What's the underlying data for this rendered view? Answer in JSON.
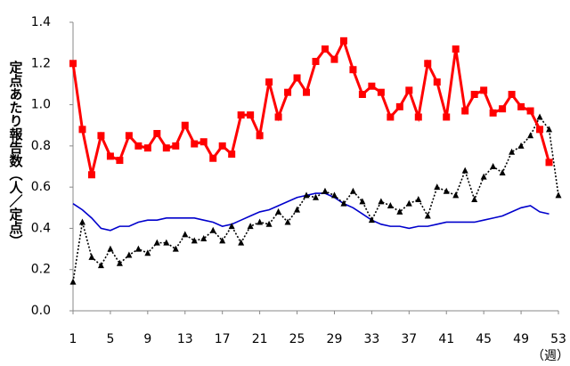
{
  "chart_data": {
    "type": "line",
    "y_label": "定点あたり報告数（人／定点）",
    "x_label": "（週）",
    "x": [
      1,
      2,
      3,
      4,
      5,
      6,
      7,
      8,
      9,
      10,
      11,
      12,
      13,
      14,
      15,
      16,
      17,
      18,
      19,
      20,
      21,
      22,
      23,
      24,
      25,
      26,
      27,
      28,
      29,
      30,
      31,
      32,
      33,
      34,
      35,
      36,
      37,
      38,
      39,
      40,
      41,
      42,
      43,
      44,
      45,
      46,
      47,
      48,
      49,
      50,
      51,
      52,
      53
    ],
    "xlim": [
      1,
      53
    ],
    "xticks": [
      1,
      5,
      9,
      13,
      17,
      21,
      25,
      29,
      33,
      37,
      41,
      45,
      49,
      53
    ],
    "ylim": [
      0,
      1.4
    ],
    "yticks": [
      {
        "value": 0,
        "label": "0.0"
      },
      0.2,
      0.4,
      0.6,
      0.8,
      {
        "value": 1,
        "label": "1.0"
      },
      1.2,
      1.4
    ],
    "series": [
      {
        "color": "#0000cc",
        "marker": "none",
        "dash": "solid",
        "values": [
          0.52,
          0.49,
          0.45,
          0.4,
          0.39,
          0.41,
          0.41,
          0.43,
          0.44,
          0.44,
          0.45,
          0.45,
          0.45,
          0.45,
          0.44,
          0.43,
          0.41,
          0.42,
          0.44,
          0.46,
          0.48,
          0.49,
          0.51,
          0.53,
          0.55,
          0.56,
          0.57,
          0.57,
          0.55,
          0.52,
          0.5,
          0.47,
          0.44,
          0.42,
          0.41,
          0.41,
          0.4,
          0.41,
          0.41,
          0.42,
          0.43,
          0.43,
          0.43,
          0.43,
          0.44,
          0.45,
          0.46,
          0.48,
          0.5,
          0.51,
          0.48,
          0.47,
          null
        ]
      },
      {
        "color": "#000000",
        "marker": "triangle",
        "dash": "dotted",
        "values": [
          0.14,
          0.43,
          0.26,
          0.22,
          0.3,
          0.23,
          0.27,
          0.3,
          0.28,
          0.33,
          0.33,
          0.3,
          0.37,
          0.34,
          0.35,
          0.39,
          0.34,
          0.41,
          0.33,
          0.41,
          0.43,
          0.42,
          0.48,
          0.43,
          0.49,
          0.56,
          0.55,
          0.58,
          0.56,
          0.52,
          0.58,
          0.53,
          0.44,
          0.53,
          0.51,
          0.48,
          0.52,
          0.54,
          0.46,
          0.6,
          0.58,
          0.56,
          0.68,
          0.54,
          0.65,
          0.7,
          0.67,
          0.77,
          0.8,
          0.85,
          0.94,
          0.88,
          0.56
        ]
      },
      {
        "color": "#ff0000",
        "marker": "square",
        "dash": "solid",
        "values": [
          1.2,
          0.88,
          0.66,
          0.85,
          0.75,
          0.73,
          0.85,
          0.8,
          0.79,
          0.86,
          0.79,
          0.8,
          0.9,
          0.81,
          0.82,
          0.74,
          0.8,
          0.76,
          0.95,
          0.95,
          0.85,
          1.11,
          0.94,
          1.06,
          1.13,
          1.06,
          1.21,
          1.27,
          1.22,
          1.31,
          1.17,
          1.05,
          1.09,
          1.06,
          0.94,
          0.99,
          1.07,
          0.94,
          1.2,
          1.11,
          0.94,
          1.27,
          0.97,
          1.05,
          1.07,
          0.96,
          0.98,
          1.05,
          0.99,
          0.97,
          0.88,
          0.72,
          null
        ]
      }
    ]
  }
}
